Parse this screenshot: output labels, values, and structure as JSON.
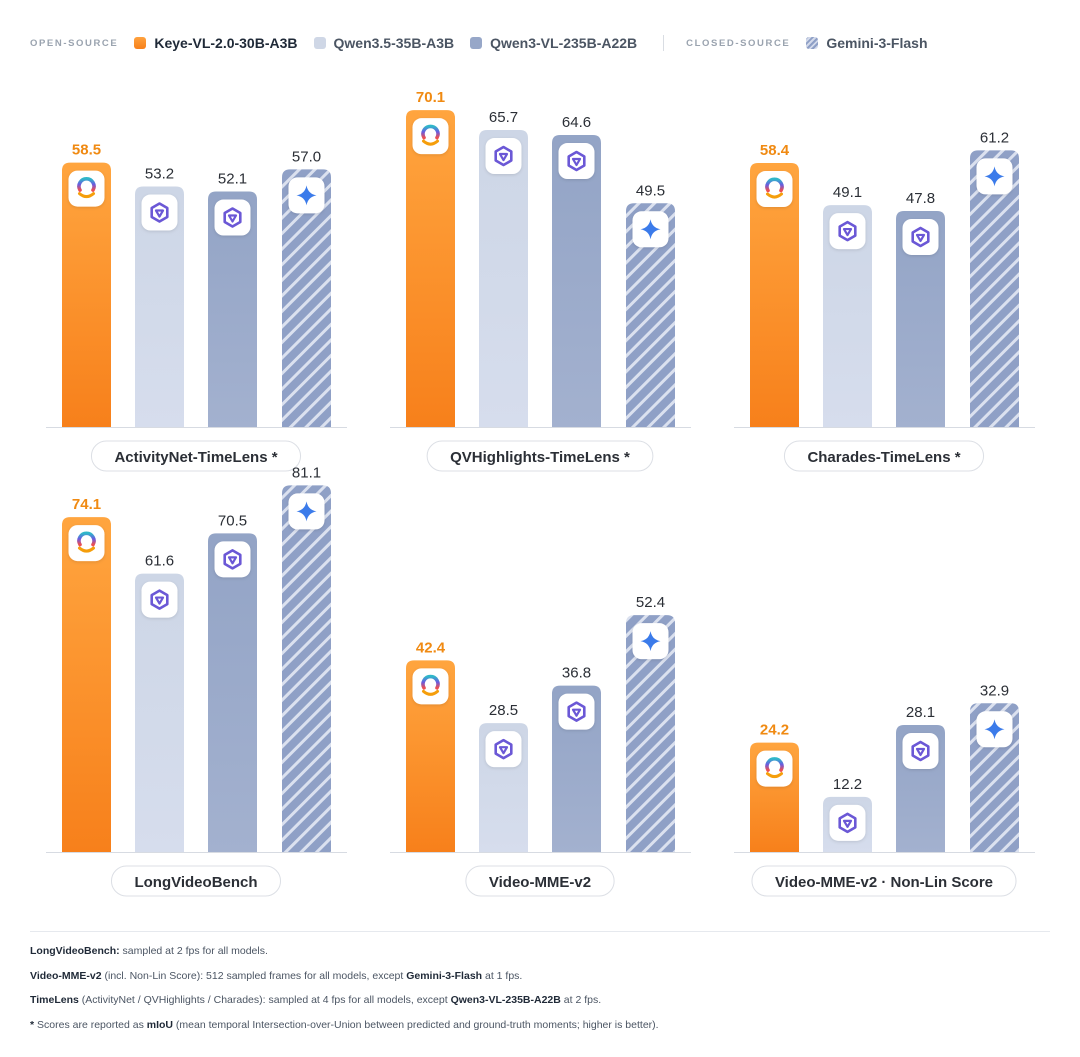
{
  "legend": {
    "open_label": "OPEN-SOURCE",
    "closed_label": "CLOSED-SOURCE",
    "items": [
      "Keye-VL-2.0-30B-A3B",
      "Qwen3.5-35B-A3B",
      "Qwen3-VL-235B-A22B",
      "Gemini-3-Flash"
    ]
  },
  "colors": {
    "keye": "#f7801b",
    "keye_label": "#f08a12",
    "qwen35": "#cfd7e6",
    "qwen3vl": "#97a7c8",
    "gemini_stripe": "#8e9fc6",
    "gemini_bg": "#d2d9ea"
  },
  "icons": [
    "keye-logo-icon",
    "qwen-logo-icon",
    "qwen-logo-icon",
    "gemini-sparkle-icon"
  ],
  "chart_data": [
    {
      "type": "bar",
      "title": "ActivityNet-TimeLens *",
      "categories": [
        "Keye-VL-2.0-30B-A3B",
        "Qwen3.5-35B-A3B",
        "Qwen3-VL-235B-A22B",
        "Gemini-3-Flash"
      ],
      "values": [
        58.5,
        53.2,
        52.1,
        57.0
      ],
      "value_labels": [
        "58.5",
        "53.2",
        "52.1",
        "57.0"
      ]
    },
    {
      "type": "bar",
      "title": "QVHighlights-TimeLens *",
      "categories": [
        "Keye-VL-2.0-30B-A3B",
        "Qwen3.5-35B-A3B",
        "Qwen3-VL-235B-A22B",
        "Gemini-3-Flash"
      ],
      "values": [
        70.1,
        65.7,
        64.6,
        49.5
      ],
      "value_labels": [
        "70.1",
        "65.7",
        "64.6",
        "49.5"
      ]
    },
    {
      "type": "bar",
      "title": "Charades-TimeLens *",
      "categories": [
        "Keye-VL-2.0-30B-A3B",
        "Qwen3.5-35B-A3B",
        "Qwen3-VL-235B-A22B",
        "Gemini-3-Flash"
      ],
      "values": [
        58.4,
        49.1,
        47.8,
        61.2
      ],
      "value_labels": [
        "58.4",
        "49.1",
        "47.8",
        "61.2"
      ]
    },
    {
      "type": "bar",
      "title": "LongVideoBench",
      "categories": [
        "Keye-VL-2.0-30B-A3B",
        "Qwen3.5-35B-A3B",
        "Qwen3-VL-235B-A22B",
        "Gemini-3-Flash"
      ],
      "values": [
        74.1,
        61.6,
        70.5,
        81.1
      ],
      "value_labels": [
        "74.1",
        "61.6",
        "70.5",
        "81.1"
      ]
    },
    {
      "type": "bar",
      "title": "Video-MME-v2",
      "categories": [
        "Keye-VL-2.0-30B-A3B",
        "Qwen3.5-35B-A3B",
        "Qwen3-VL-235B-A22B",
        "Gemini-3-Flash"
      ],
      "values": [
        42.4,
        28.5,
        36.8,
        52.4
      ],
      "value_labels": [
        "42.4",
        "28.5",
        "36.8",
        "52.4"
      ]
    },
    {
      "type": "bar",
      "title": "Video-MME-v2 · Non-Lin Score",
      "categories": [
        "Keye-VL-2.0-30B-A3B",
        "Qwen3.5-35B-A3B",
        "Qwen3-VL-235B-A22B",
        "Gemini-3-Flash"
      ],
      "values": [
        24.2,
        12.2,
        28.1,
        32.9
      ],
      "value_labels": [
        "24.2",
        "12.2",
        "28.1",
        "32.9"
      ]
    }
  ],
  "footnotes": {
    "line1": {
      "b1": "LongVideoBench:",
      "t1": " sampled at 2 fps for all models."
    },
    "line2": {
      "b1": "Video-MME-v2",
      "t1": " (incl. Non-Lin Score): 512 sampled frames for all models, except ",
      "b2": "Gemini-3-Flash",
      "t2": " at 1 fps."
    },
    "line3": {
      "b1": "TimeLens",
      "t1": " (ActivityNet / QVHighlights / Charades): sampled at 4 fps for all models, except ",
      "b2": "Qwen3-VL-235B-A22B",
      "t2": " at 2 fps."
    },
    "line4": {
      "b1": "*",
      "t1": " Scores are reported as ",
      "b2": "mIoU",
      "t2": " (mean temporal Intersection-over-Union between predicted and ground-truth moments; higher is better)."
    }
  }
}
